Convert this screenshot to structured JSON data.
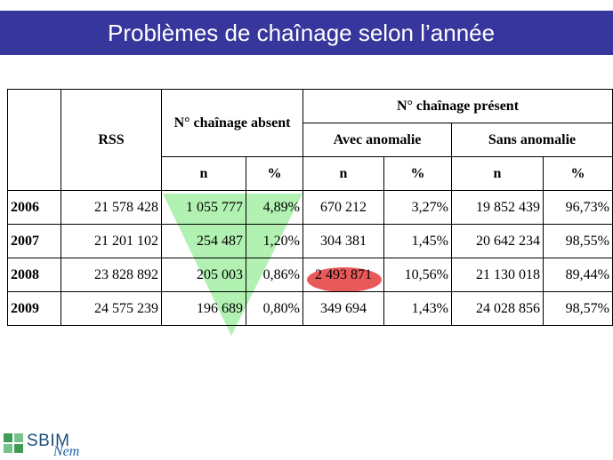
{
  "slide": {
    "title": "Problèmes de chaînage selon l’année"
  },
  "table": {
    "headers": {
      "rss": "RSS",
      "absent": "N° chaînage absent",
      "present": "N° chaînage présent",
      "avec_anomalie": "Avec anomalie",
      "sans_anomalie": "Sans anomalie",
      "n": "n",
      "pct": "%"
    },
    "rows": [
      {
        "year": "2006",
        "rss": "21 578 428",
        "absent_n": "1 055 777",
        "absent_pct": "4,89%",
        "avec_n": "670 212",
        "avec_pct": "3,27%",
        "sans_n": "19 852 439",
        "sans_pct": "96,73%"
      },
      {
        "year": "2007",
        "rss": "21 201 102",
        "absent_n": "254 487",
        "absent_pct": "1,20%",
        "avec_n": "304 381",
        "avec_pct": "1,45%",
        "sans_n": "20 642 234",
        "sans_pct": "98,55%"
      },
      {
        "year": "2008",
        "rss": "23 828 892",
        "absent_n": "205 003",
        "absent_pct": "0,86%",
        "avec_n": "2 493 871",
        "avec_pct": "10,56%",
        "sans_n": "21 130 018",
        "sans_pct": "89,44%"
      },
      {
        "year": "2009",
        "rss": "24 575 239",
        "absent_n": "196 689",
        "absent_pct": "0,80%",
        "avec_n": "349 694",
        "avec_pct": "1,43%",
        "sans_n": "24 028 856",
        "sans_pct": "98,57%"
      }
    ]
  },
  "highlights": {
    "triangle_color": "#a8f0a8",
    "ellipse_color": "#e85a5a"
  },
  "logo": {
    "name": "SBIM",
    "subtitle": "Nem",
    "icon": "grid-logo-icon"
  }
}
